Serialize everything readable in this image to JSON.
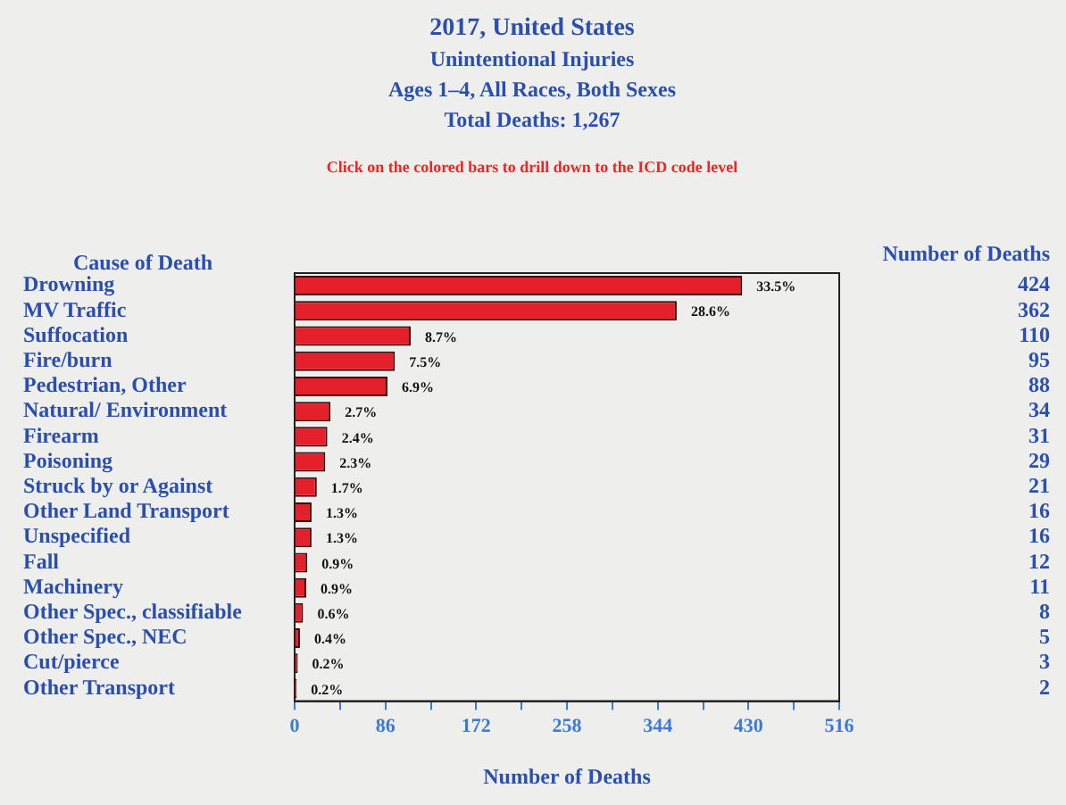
{
  "chart_data": {
    "type": "bar",
    "orientation": "horizontal",
    "title": "2017, United States",
    "subtitle": "Unintentional Injuries\nAges 1–4, All Races, Both Sexes\nTotal Deaths: 1,267",
    "annotations": [
      "Click on the colored bars to drill down to the ICD code level",
      "Number of Deaths",
      {
        "text": "33.5%",
        "x": 424,
        "y": "Drowning"
      },
      {
        "text": "28.6%",
        "x": 362,
        "y": "MV Traffic"
      },
      {
        "text": "8.7%",
        "x": 110,
        "y": "Suffocation"
      },
      {
        "text": "7.5%",
        "x": 95,
        "y": "Fire/burn"
      },
      {
        "text": "6.9%",
        "x": 88,
        "y": "Pedestrian, Other"
      },
      {
        "text": "2.7%",
        "x": 34,
        "y": "Natural/ Environment"
      },
      {
        "text": "2.4%",
        "x": 31,
        "y": "Firearm"
      },
      {
        "text": "2.3%",
        "x": 29,
        "y": "Poisoning"
      },
      {
        "text": "1.7%",
        "x": 21,
        "y": "Struck by or Against"
      },
      {
        "text": "1.3%",
        "x": 16,
        "y": "Other Land Transport"
      },
      {
        "text": "1.3%",
        "x": 16,
        "y": "Unspecified"
      },
      {
        "text": "0.9%",
        "x": 12,
        "y": "Fall"
      },
      {
        "text": "0.9%",
        "x": 11,
        "y": "Machinery"
      },
      {
        "text": "0.6%",
        "x": 8,
        "y": "Other Spec., classifiable"
      },
      {
        "text": "0.4%",
        "x": 5,
        "y": "Other Spec., NEC"
      },
      {
        "text": "0.2%",
        "x": 3,
        "y": "Cut/pierce"
      },
      {
        "text": "0.2%",
        "x": 2,
        "y": "Other Transport"
      }
    ],
    "ylabel": "Cause of Death",
    "xlabel": "Number of Deaths",
    "categories": [
      "Drowning",
      "MV Traffic",
      "Suffocation",
      "Fire/burn",
      "Pedestrian, Other",
      "Natural/ Environment",
      "Firearm",
      "Poisoning",
      "Struck by or Against",
      "Other Land Transport",
      "Unspecified",
      "Fall",
      "Machinery",
      "Other Spec., classifiable",
      "Other Spec., NEC",
      "Cut/pierce",
      "Other Transport"
    ],
    "values": [
      424,
      362,
      110,
      95,
      88,
      34,
      31,
      29,
      21,
      16,
      16,
      12,
      11,
      8,
      5,
      3,
      2
    ],
    "data_labels": true,
    "color": "#e5202b",
    "xlim": [
      0,
      516
    ],
    "xticks": [
      0,
      {
        "value": 43,
        "label": null
      },
      86,
      {
        "value": 129,
        "label": null
      },
      172,
      {
        "value": 215,
        "label": null
      },
      258,
      {
        "value": 301,
        "label": null
      },
      344,
      {
        "value": 387,
        "label": null
      },
      430,
      {
        "value": 473,
        "label": null
      },
      516
    ],
    "grid": false,
    "legend": false
  }
}
